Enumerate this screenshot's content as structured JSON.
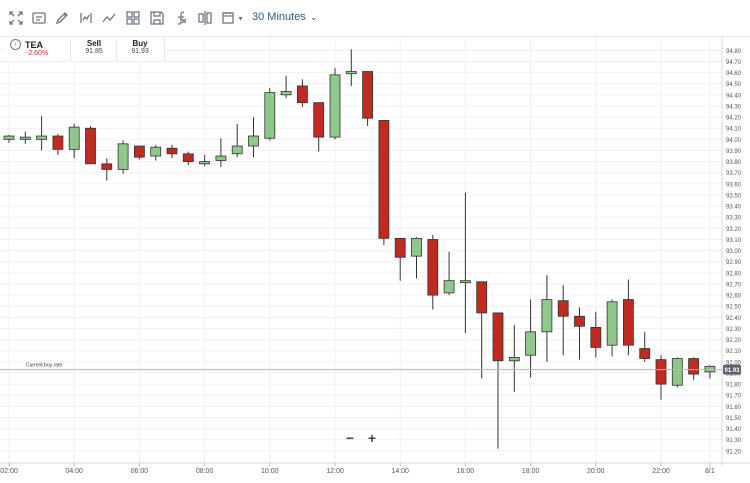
{
  "toolbar": {
    "icons": [
      "fullscreen-icon",
      "screenshot-icon",
      "draw-icon",
      "indicator-icon",
      "chart-type-icon",
      "layout-icon",
      "save-icon",
      "formula-icon",
      "compare-icon",
      "calendar-icon"
    ],
    "interval": "30 Minutes"
  },
  "quote": {
    "symbol": "TEA",
    "change": "-2.60%",
    "change_color": "#d32f2f",
    "sell_label": "Sell",
    "sell_value": "91.85",
    "buy_label": "Buy",
    "buy_value": "91.93"
  },
  "zoom": {
    "minus": "−",
    "plus": "+"
  },
  "chart_data": {
    "type": "candlestick",
    "current_rate_label": "Current buy rate",
    "current_rate": 91.93,
    "current_rate_text": "91.93",
    "ylim": [
      91.1,
      94.92
    ],
    "yticks": [
      91.2,
      91.3,
      91.4,
      91.5,
      91.6,
      91.7,
      91.8,
      91.9,
      92.0,
      92.1,
      92.2,
      92.3,
      92.4,
      92.5,
      92.6,
      92.7,
      92.8,
      92.9,
      93.0,
      93.1,
      93.2,
      93.3,
      93.4,
      93.5,
      93.6,
      93.7,
      93.8,
      93.9,
      94.0,
      94.1,
      94.2,
      94.3,
      94.4,
      94.5,
      94.6,
      94.7,
      94.8
    ],
    "xticks": [
      {
        "label": "02:00",
        "index": 0
      },
      {
        "label": "04:00",
        "index": 4
      },
      {
        "label": "06:00",
        "index": 8
      },
      {
        "label": "08:00",
        "index": 12
      },
      {
        "label": "10:00",
        "index": 16
      },
      {
        "label": "12:00",
        "index": 20
      },
      {
        "label": "14:00",
        "index": 24
      },
      {
        "label": "16:00",
        "index": 28
      },
      {
        "label": "18:00",
        "index": 32
      },
      {
        "label": "20:00",
        "index": 36
      },
      {
        "label": "22:00",
        "index": 40
      },
      {
        "label": "8/1",
        "index": 43
      }
    ],
    "up_color": "#8ec88a",
    "down_color": "#bf2b21",
    "candles": [
      {
        "o": 94.0,
        "h": 94.04,
        "l": 93.97,
        "c": 94.03
      },
      {
        "o": 94.0,
        "h": 94.07,
        "l": 93.96,
        "c": 94.02
      },
      {
        "o": 94.0,
        "h": 94.21,
        "l": 93.9,
        "c": 94.03
      },
      {
        "o": 94.03,
        "h": 94.05,
        "l": 93.86,
        "c": 93.91
      },
      {
        "o": 93.91,
        "h": 94.14,
        "l": 93.83,
        "c": 94.11
      },
      {
        "o": 94.1,
        "h": 94.12,
        "l": 93.78,
        "c": 93.78
      },
      {
        "o": 93.78,
        "h": 93.83,
        "l": 93.63,
        "c": 93.73
      },
      {
        "o": 93.73,
        "h": 93.99,
        "l": 93.69,
        "c": 93.96
      },
      {
        "o": 93.94,
        "h": 93.94,
        "l": 93.82,
        "c": 93.84
      },
      {
        "o": 93.85,
        "h": 93.95,
        "l": 93.81,
        "c": 93.93
      },
      {
        "o": 93.92,
        "h": 93.95,
        "l": 93.83,
        "c": 93.87
      },
      {
        "o": 93.87,
        "h": 93.89,
        "l": 93.77,
        "c": 93.8
      },
      {
        "o": 93.78,
        "h": 93.86,
        "l": 93.76,
        "c": 93.8
      },
      {
        "o": 93.81,
        "h": 94.01,
        "l": 93.75,
        "c": 93.85
      },
      {
        "o": 93.87,
        "h": 94.14,
        "l": 93.84,
        "c": 93.94
      },
      {
        "o": 93.94,
        "h": 94.2,
        "l": 93.84,
        "c": 94.03
      },
      {
        "o": 94.01,
        "h": 94.46,
        "l": 93.99,
        "c": 94.42
      },
      {
        "o": 94.4,
        "h": 94.57,
        "l": 94.37,
        "c": 94.43
      },
      {
        "o": 94.48,
        "h": 94.54,
        "l": 94.29,
        "c": 94.33
      },
      {
        "o": 94.33,
        "h": 94.33,
        "l": 93.89,
        "c": 94.02
      },
      {
        "o": 94.02,
        "h": 94.64,
        "l": 94.0,
        "c": 94.58
      },
      {
        "o": 94.59,
        "h": 94.81,
        "l": 94.48,
        "c": 94.61
      },
      {
        "o": 94.61,
        "h": 94.61,
        "l": 94.12,
        "c": 94.19
      },
      {
        "o": 94.17,
        "h": 94.17,
        "l": 93.05,
        "c": 93.11
      },
      {
        "o": 93.11,
        "h": 93.11,
        "l": 92.73,
        "c": 92.94
      },
      {
        "o": 92.95,
        "h": 93.12,
        "l": 92.75,
        "c": 93.11
      },
      {
        "o": 93.1,
        "h": 93.14,
        "l": 92.47,
        "c": 92.6
      },
      {
        "o": 92.62,
        "h": 92.99,
        "l": 92.6,
        "c": 92.73
      },
      {
        "o": 92.72,
        "h": 93.52,
        "l": 92.26,
        "c": 92.73
      },
      {
        "o": 92.72,
        "h": 92.72,
        "l": 91.85,
        "c": 92.44
      },
      {
        "o": 92.44,
        "h": 92.44,
        "l": 91.22,
        "c": 92.01
      },
      {
        "o": 92.01,
        "h": 92.33,
        "l": 91.73,
        "c": 92.04
      },
      {
        "o": 92.06,
        "h": 92.56,
        "l": 91.86,
        "c": 92.27
      },
      {
        "o": 92.27,
        "h": 92.78,
        "l": 92.0,
        "c": 92.56
      },
      {
        "o": 92.55,
        "h": 92.69,
        "l": 92.06,
        "c": 92.41
      },
      {
        "o": 92.41,
        "h": 92.49,
        "l": 92.02,
        "c": 92.32
      },
      {
        "o": 92.31,
        "h": 92.45,
        "l": 92.04,
        "c": 92.13
      },
      {
        "o": 92.15,
        "h": 92.56,
        "l": 92.05,
        "c": 92.54
      },
      {
        "o": 92.56,
        "h": 92.74,
        "l": 92.06,
        "c": 92.15
      },
      {
        "o": 92.12,
        "h": 92.27,
        "l": 92.0,
        "c": 92.03
      },
      {
        "o": 92.02,
        "h": 92.06,
        "l": 91.66,
        "c": 91.8
      },
      {
        "o": 91.79,
        "h": 92.04,
        "l": 91.77,
        "c": 92.03
      },
      {
        "o": 92.03,
        "h": 92.04,
        "l": 91.84,
        "c": 91.89
      },
      {
        "o": 91.91,
        "h": 91.97,
        "l": 91.85,
        "c": 91.96
      }
    ]
  }
}
